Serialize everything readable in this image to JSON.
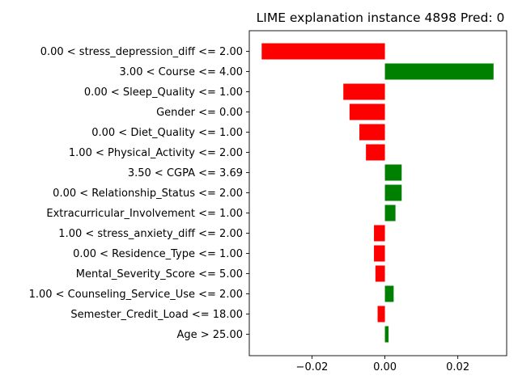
{
  "chart_data": {
    "type": "bar",
    "orientation": "horizontal",
    "title": "LIME explanation instance 4898 Pred: 0",
    "xlabel": "",
    "ylabel": "",
    "xlim": [
      -0.0372,
      0.0334
    ],
    "xticks": [
      -0.02,
      0.0,
      0.02
    ],
    "xtick_labels": [
      "−0.02",
      "0.00",
      "0.02"
    ],
    "grid": false,
    "legend": "none",
    "positive_color": "#008000",
    "negative_color": "#ff0000",
    "categories": [
      "0.00 < stress_depression_diff <= 2.00",
      "3.00 < Course <= 4.00",
      "0.00 < Sleep_Quality <= 1.00",
      "Gender <= 0.00",
      "0.00 < Diet_Quality <= 1.00",
      "1.00 < Physical_Activity <= 2.00",
      "3.50 < CGPA <= 3.69",
      "0.00 < Relationship_Status <= 2.00",
      "Extracurricular_Involvement <= 1.00",
      "1.00 < stress_anxiety_diff <= 2.00",
      "0.00 < Residence_Type <= 1.00",
      "Mental_Severity_Score <= 5.00",
      "1.00 < Counseling_Service_Use <= 2.00",
      "Semester_Credit_Load <= 18.00",
      "Age > 25.00"
    ],
    "values": [
      -0.0338,
      0.0298,
      -0.0114,
      -0.0097,
      -0.007,
      -0.0052,
      0.0046,
      0.0046,
      0.0029,
      -0.003,
      -0.003,
      -0.0026,
      0.0024,
      -0.002,
      0.001
    ]
  }
}
